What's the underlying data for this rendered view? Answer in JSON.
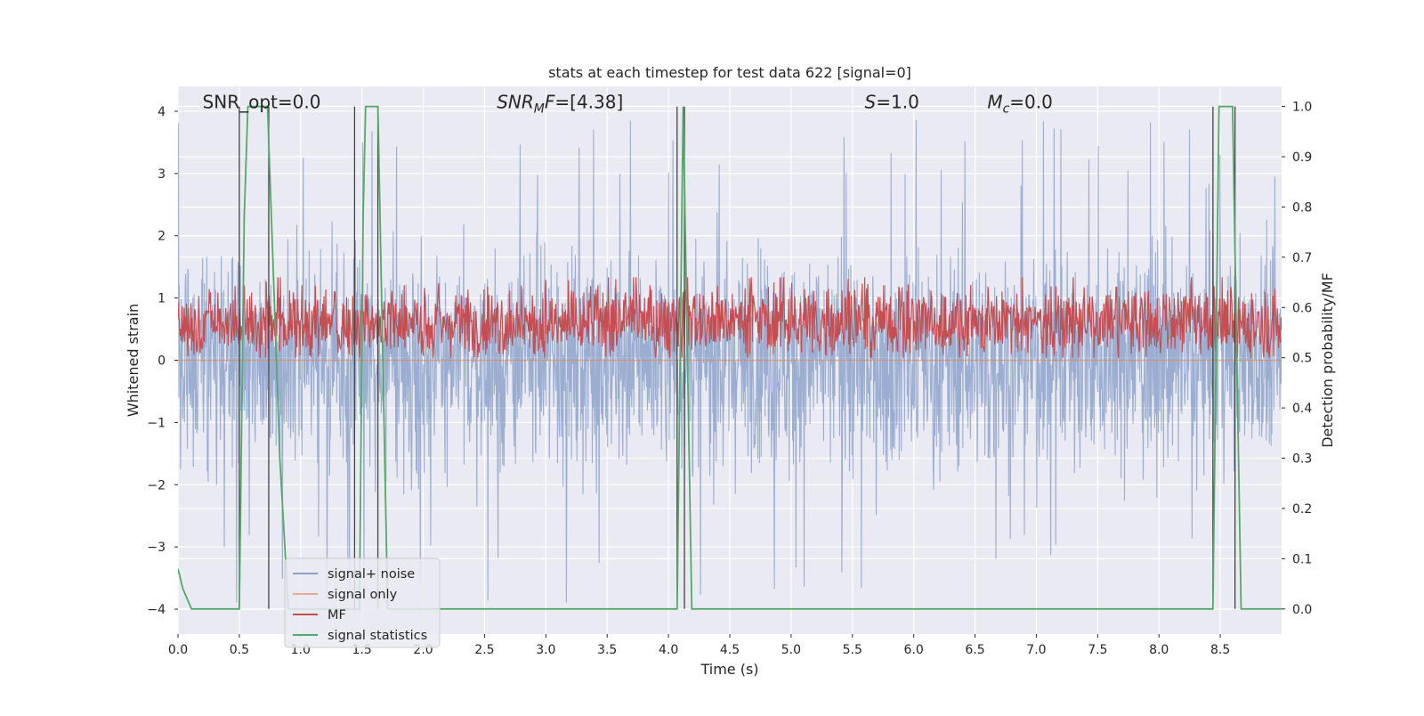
{
  "chart_data": {
    "type": "line",
    "title": "stats at each timestep for test data 622 [signal=0]",
    "xlabel": "Time (s)",
    "ylabel": "Whitened strain",
    "ylabel_right": "Detection probability/MF",
    "xlim": [
      0,
      9.0
    ],
    "ylim": [
      -4.4,
      4.4
    ],
    "ylim_right": [
      -0.05,
      1.04
    ],
    "x_ticks": [
      "0.0",
      "0.5",
      "1.0",
      "1.5",
      "2.0",
      "2.5",
      "3.0",
      "3.5",
      "4.0",
      "4.5",
      "5.0",
      "5.5",
      "6.0",
      "6.5",
      "7.0",
      "7.5",
      "8.0",
      "8.5"
    ],
    "x_tick_values": [
      0,
      0.5,
      1,
      1.5,
      2,
      2.5,
      3,
      3.5,
      4,
      4.5,
      5,
      5.5,
      6,
      6.5,
      7,
      7.5,
      8,
      8.5
    ],
    "y_ticks": [
      "4",
      "3",
      "2",
      "1",
      "0",
      "−1",
      "−2",
      "−3",
      "−4"
    ],
    "y_tick_values": [
      4,
      3,
      2,
      1,
      0,
      -1,
      -2,
      -3,
      -4
    ],
    "y_right_ticks": [
      "1.0",
      "0.9",
      "0.8",
      "0.7",
      "0.6",
      "0.5",
      "0.4",
      "0.3",
      "0.2",
      "0.1",
      "0.0"
    ],
    "y_right_tick_values": [
      1.0,
      0.9,
      0.8,
      0.7,
      0.6,
      0.5,
      0.4,
      0.3,
      0.2,
      0.1,
      0.0
    ],
    "grid": true,
    "legend_position": "lower-left",
    "annotations": [
      {
        "text": "SNR_opt=0.0",
        "x": 0.2,
        "y": 4.05
      },
      {
        "text": "SNR",
        "sub": "M",
        "rest": "F=[4.38]",
        "italic": true,
        "x": 2.6,
        "y": 4.05
      },
      {
        "text": "S",
        "rest": "=1.0",
        "italic": true,
        "x": 5.6,
        "y": 4.05
      },
      {
        "text": "M",
        "sub": "c",
        "rest": "=0.0",
        "italic": true,
        "x": 6.6,
        "y": 4.05
      }
    ],
    "series": [
      {
        "name": "signal+ noise",
        "color": "#4c72b0",
        "note": "dense noise trace, approx ±2.4 with spikes to ±4"
      },
      {
        "name": "signal only",
        "color": "#dd8452",
        "values": "flat at 0"
      },
      {
        "name": "MF",
        "color": "#c44e52",
        "note": "dense trace on right axis, approx 0.50–0.65"
      },
      {
        "name": "signal statistics",
        "color": "#55a868",
        "axis": "right",
        "x": [
          0.0,
          0.04,
          0.11,
          0.5,
          0.54,
          0.57,
          0.73,
          0.83,
          0.9,
          1.48,
          1.51,
          1.53,
          1.63,
          1.71,
          4.07,
          4.12,
          4.19,
          8.44,
          8.49,
          8.6,
          8.67,
          9.0
        ],
        "y": [
          0.08,
          0.04,
          0.0,
          0.0,
          0.78,
          1.0,
          1.0,
          0.3,
          0.0,
          0.0,
          0.78,
          1.0,
          1.0,
          0.0,
          0.0,
          1.0,
          0.0,
          0.0,
          1.0,
          1.0,
          0.0,
          0.0
        ]
      }
    ],
    "vertical_markers": [
      0.5,
      0.74,
      1.44,
      1.63,
      4.07,
      4.13,
      8.44,
      8.62
    ]
  },
  "colors": {
    "axes_bg": "#eaeaf2",
    "grid": "#ffffff",
    "noise": "#4c72b0",
    "signal_only": "#dd8452",
    "mf": "#c44e52",
    "stats": "#55a868",
    "markers": "#444444"
  }
}
